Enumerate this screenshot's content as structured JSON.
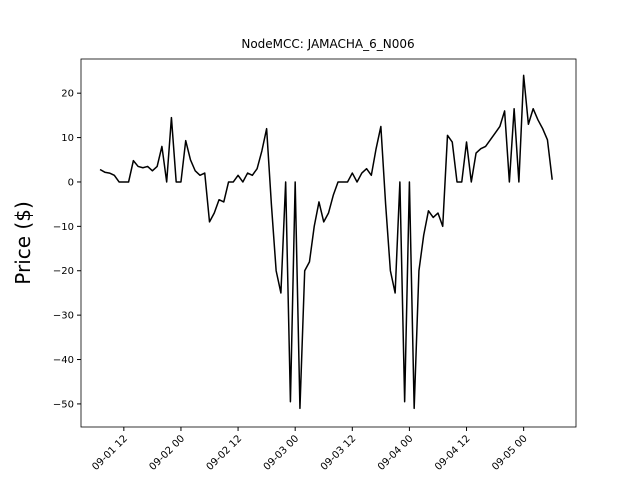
{
  "chart_data": {
    "type": "line",
    "title": "NodeMCC: JAMACHA_6_N006",
    "y_label": "Price ($)",
    "x": [
      "09-01 07",
      "09-01 08",
      "09-01 09",
      "09-01 10",
      "09-01 11",
      "09-01 12",
      "09-01 13",
      "09-01 14",
      "09-01 15",
      "09-01 16",
      "09-01 17",
      "09-01 18",
      "09-01 19",
      "09-01 20",
      "09-01 21",
      "09-01 22",
      "09-01 23",
      "09-02 00",
      "09-02 01",
      "09-02 02",
      "09-02 03",
      "09-02 04",
      "09-02 05",
      "09-02 06",
      "09-02 07",
      "09-02 08",
      "09-02 09",
      "09-02 10",
      "09-02 11",
      "09-02 12",
      "09-02 13",
      "09-02 14",
      "09-02 15",
      "09-02 16",
      "09-02 17",
      "09-02 18",
      "09-02 19",
      "09-02 20",
      "09-02 21",
      "09-02 22",
      "09-02 23",
      "09-03 00",
      "09-03 01",
      "09-03 02",
      "09-03 03",
      "09-03 04",
      "09-03 05",
      "09-03 06",
      "09-03 07",
      "09-03 08",
      "09-03 09",
      "09-03 10",
      "09-03 11",
      "09-03 12",
      "09-03 13",
      "09-03 14",
      "09-03 15",
      "09-03 16",
      "09-03 17",
      "09-03 18",
      "09-03 19",
      "09-03 20",
      "09-03 21",
      "09-03 22",
      "09-03 23",
      "09-04 00",
      "09-04 01",
      "09-04 02",
      "09-04 03",
      "09-04 04",
      "09-04 05",
      "09-04 06",
      "09-04 07",
      "09-04 08",
      "09-04 09",
      "09-04 10",
      "09-04 11",
      "09-04 12",
      "09-04 13",
      "09-04 14",
      "09-04 15",
      "09-04 16",
      "09-04 17",
      "09-04 18",
      "09-04 19",
      "09-04 20",
      "09-04 21",
      "09-04 22",
      "09-04 23",
      "09-05 00",
      "09-05 01",
      "09-05 02",
      "09-05 03",
      "09-05 04",
      "09-05 05",
      "09-05 06"
    ],
    "series": [
      {
        "color": "#000000",
        "values": [
          2.8,
          2.2,
          2.0,
          1.5,
          0,
          0,
          0,
          4.8,
          3.5,
          3.2,
          3.5,
          2.5,
          3.5,
          8,
          0,
          14.5,
          0,
          0,
          9.3,
          5,
          2.5,
          1.5,
          2,
          -9,
          -7,
          -4,
          -4.5,
          0,
          0,
          1.5,
          0,
          2,
          1.5,
          3,
          7,
          12,
          -5,
          -20,
          -25,
          0,
          -49.5,
          0,
          -51,
          -20,
          -18,
          -10,
          -4.5,
          -9,
          -7,
          -3,
          0,
          0,
          0,
          2,
          0,
          2,
          3,
          1.5,
          7.5,
          12.5,
          -5,
          -20,
          -25,
          0,
          -49.5,
          0,
          -51,
          -20,
          -12,
          -6.5,
          -8,
          -7,
          -10,
          10.5,
          9,
          0,
          0,
          9,
          0,
          6.5,
          7.5,
          8,
          9.5,
          11,
          12.5,
          16,
          0,
          16.5,
          0,
          24,
          13,
          16.5,
          14,
          12,
          9.5,
          0.5
        ]
      }
    ],
    "xlim": [
      "09-01 03",
      "09-05 11"
    ],
    "xticks": [
      "09-01 12",
      "09-02 00",
      "09-02 12",
      "09-03 00",
      "09-03 12",
      "09-04 00",
      "09-04 12",
      "09-05 00"
    ],
    "ylim": [
      -55.2,
      27.7
    ],
    "yticks": [
      {
        "value": -50,
        "label": "−50"
      },
      {
        "value": -40,
        "label": "−40"
      },
      {
        "value": -30,
        "label": "−30"
      },
      {
        "value": -20,
        "label": "−20"
      },
      {
        "value": -10,
        "label": "−10"
      },
      0,
      10,
      20
    ]
  }
}
